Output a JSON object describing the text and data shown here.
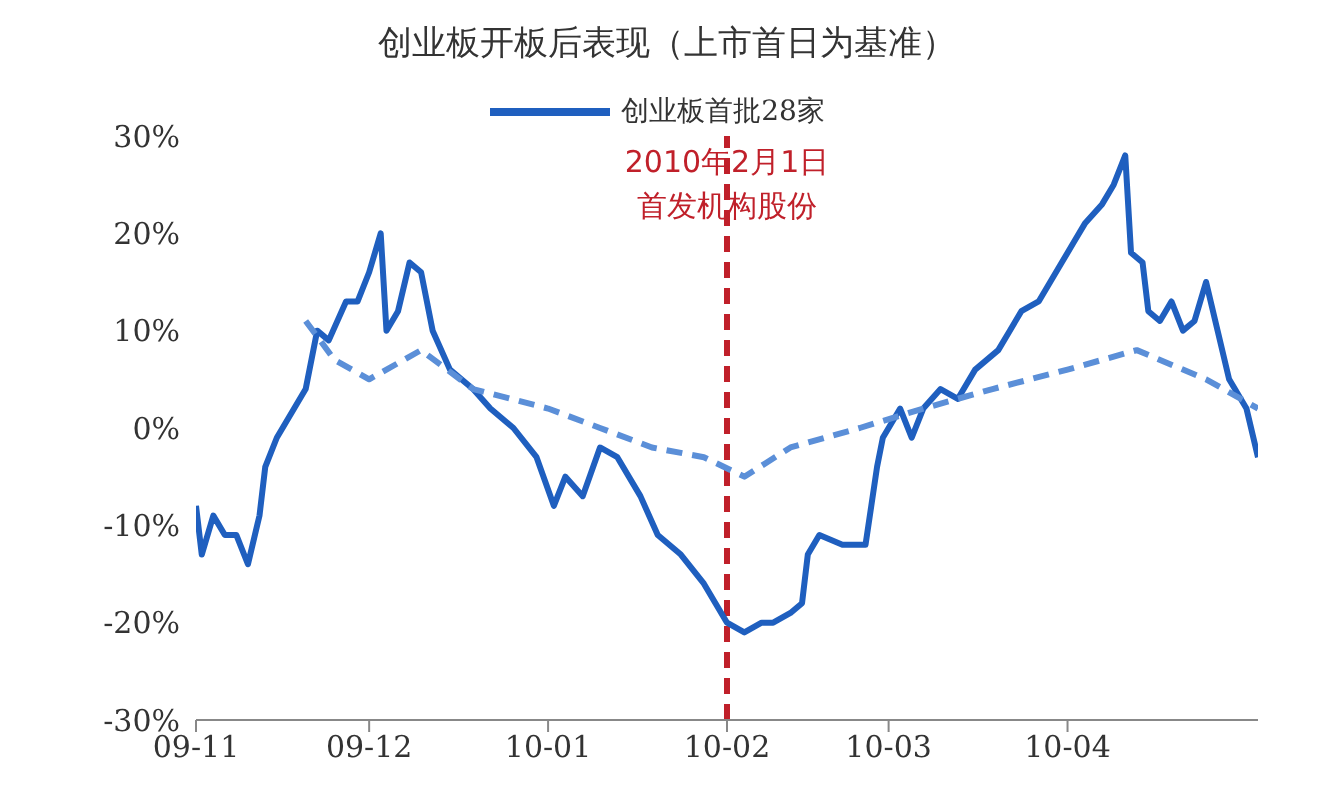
{
  "chart_data": {
    "type": "line",
    "title": "创业板开板后表现（上市首日为基准）",
    "xlim": [
      "2009-11-01",
      "2010-05-04"
    ],
    "xticks": [
      {
        "value": "2009-11",
        "label": "09-11"
      },
      {
        "value": "2009-12",
        "label": "09-12"
      },
      {
        "value": "2010-01",
        "label": "10-01"
      },
      {
        "value": "2010-02",
        "label": "10-02"
      },
      {
        "value": "2010-03",
        "label": "10-03"
      },
      {
        "value": "2010-04",
        "label": "10-04"
      }
    ],
    "ylim": [
      -30,
      30
    ],
    "yticks": [
      {
        "value": -30,
        "label": "-30%"
      },
      {
        "value": -20,
        "label": "-20%"
      },
      {
        "value": -10,
        "label": "-10%"
      },
      {
        "value": 0,
        "label": "0%"
      },
      {
        "value": 10,
        "label": "10%"
      },
      {
        "value": 20,
        "label": "20%"
      },
      {
        "value": 30,
        "label": "30%"
      }
    ],
    "series": [
      {
        "name": "创业板首批28家",
        "color": "#1f5fbf",
        "line_style": "solid",
        "x": [
          "2009-11-01",
          "2009-11-02",
          "2009-11-04",
          "2009-11-06",
          "2009-11-08",
          "2009-11-10",
          "2009-11-12",
          "2009-11-13",
          "2009-11-15",
          "2009-11-18",
          "2009-11-20",
          "2009-11-22",
          "2009-11-24",
          "2009-11-27",
          "2009-11-29",
          "2009-12-01",
          "2009-12-03",
          "2009-12-04",
          "2009-12-06",
          "2009-12-08",
          "2009-12-10",
          "2009-12-12",
          "2009-12-15",
          "2009-12-19",
          "2009-12-22",
          "2009-12-26",
          "2009-12-30",
          "2010-01-02",
          "2010-01-04",
          "2010-01-07",
          "2010-01-10",
          "2010-01-13",
          "2010-01-17",
          "2010-01-20",
          "2010-01-24",
          "2010-01-28",
          "2010-01-30",
          "2010-02-01",
          "2010-02-04",
          "2010-02-07",
          "2010-02-09",
          "2010-02-12",
          "2010-02-14",
          "2010-02-15",
          "2010-02-17",
          "2010-02-21",
          "2010-02-25",
          "2010-02-26",
          "2010-02-27",
          "2010-02-28",
          "2010-03-03",
          "2010-03-05",
          "2010-03-07",
          "2010-03-10",
          "2010-03-13",
          "2010-03-16",
          "2010-03-20",
          "2010-03-22",
          "2010-03-24",
          "2010-03-27",
          "2010-03-29",
          "2010-03-31",
          "2010-04-02",
          "2010-04-04",
          "2010-04-07",
          "2010-04-09",
          "2010-04-11",
          "2010-04-12",
          "2010-04-14",
          "2010-04-15",
          "2010-04-17",
          "2010-04-19",
          "2010-04-21",
          "2010-04-23",
          "2010-04-25",
          "2010-04-27",
          "2010-04-29",
          "2010-05-02",
          "2010-05-04"
        ],
        "values": [
          -8,
          -13,
          -9,
          -11,
          -11,
          -14,
          -9,
          -4,
          -1,
          2,
          4,
          10,
          9,
          13,
          13,
          16,
          20,
          10,
          12,
          17,
          16,
          10,
          6,
          4,
          2,
          0,
          -3,
          -8,
          -5,
          -7,
          -2,
          -3,
          -7,
          -11,
          -13,
          -16,
          -18,
          -20,
          -21,
          -20,
          -20,
          -19,
          -18,
          -13,
          -11,
          -12,
          -12,
          -8,
          -4,
          -1,
          2,
          -1,
          2,
          4,
          3,
          6,
          8,
          10,
          12,
          13,
          15,
          17,
          19,
          21,
          23,
          25,
          28,
          18,
          17,
          12,
          11,
          13,
          10,
          11,
          15,
          10,
          5,
          2,
          -3
        ]
      },
      {
        "color": "#5b8fd8",
        "line_style": "dashed",
        "x": [
          "2009-11-20",
          "2009-11-25",
          "2009-12-01",
          "2009-12-10",
          "2009-12-19",
          "2010-01-01",
          "2010-01-10",
          "2010-01-19",
          "2010-01-28",
          "2010-02-04",
          "2010-02-12",
          "2010-02-24",
          "2010-03-07",
          "2010-03-19",
          "2010-04-01",
          "2010-04-13",
          "2010-04-25",
          "2010-05-04"
        ],
        "values": [
          11,
          7,
          5,
          8,
          4,
          2,
          0,
          -2,
          -3,
          -5,
          -2,
          0,
          2,
          4,
          6,
          8,
          5,
          2
        ]
      }
    ],
    "ref_lines": [
      {
        "axis": "x",
        "value": "2010-02-01",
        "label": "2010年2月1日首发机构股份",
        "color": "#c0202a",
        "line_style": "dashed"
      }
    ],
    "legend": "top",
    "grid": false
  }
}
